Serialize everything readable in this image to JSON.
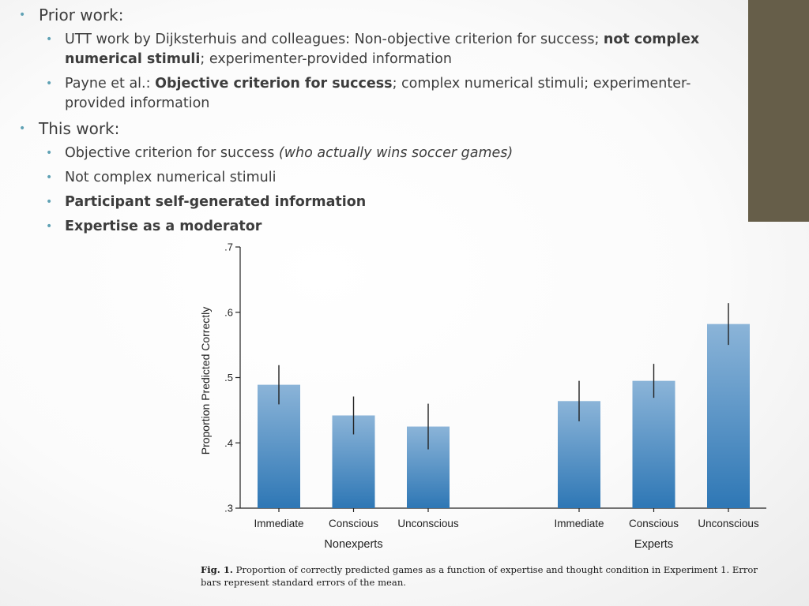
{
  "theme": {
    "accent": "#665e49",
    "text": "#3d3d3d",
    "bullet": "#5fa1b4",
    "bar_top": "#8bb4d8",
    "bar_bottom": "#2e77b5"
  },
  "slide": {
    "items": [
      {
        "level": 1,
        "runs": [
          {
            "t": "Prior work:"
          }
        ]
      },
      {
        "level": 2,
        "runs": [
          {
            "t": "UTT work by Dijksterhuis and colleagues: Non-objective criterion for success; "
          },
          {
            "t": "not complex numerical stimuli",
            "b": true
          },
          {
            "t": "; experimenter-provided information"
          }
        ]
      },
      {
        "level": 2,
        "runs": [
          {
            "t": "Payne et al.: "
          },
          {
            "t": "Objective criterion for success",
            "b": true
          },
          {
            "t": "; complex numerical stimuli; experimenter-provided information"
          }
        ]
      },
      {
        "level": 1,
        "runs": [
          {
            "t": "This work:"
          }
        ]
      },
      {
        "level": 2,
        "runs": [
          {
            "t": "Objective criterion for success "
          },
          {
            "t": "(who actually wins soccer games)",
            "i": true
          }
        ]
      },
      {
        "level": 2,
        "runs": [
          {
            "t": "Not complex numerical stimuli"
          }
        ]
      },
      {
        "level": 2,
        "runs": [
          {
            "t": "Participant self-generated information",
            "b": true
          }
        ]
      },
      {
        "level": 2,
        "runs": [
          {
            "t": "Expertise as a moderator",
            "b": true
          }
        ]
      }
    ],
    "bullet_char": "•"
  },
  "chart_data": {
    "type": "bar",
    "title": "",
    "ylabel": "Proportion Predicted Correctly",
    "ylim": [
      0.3,
      0.7
    ],
    "yticks": [
      0.3,
      0.4,
      0.5,
      0.6,
      0.7
    ],
    "ytick_labels": [
      ".3",
      ".4",
      ".5",
      ".6",
      ".7"
    ],
    "groups": [
      {
        "name": "Nonexperts",
        "bars": [
          {
            "label": "Immediate",
            "value": 0.489,
            "err": 0.03
          },
          {
            "label": "Conscious",
            "value": 0.442,
            "err": 0.029
          },
          {
            "label": "Unconscious",
            "value": 0.425,
            "err": 0.035
          }
        ]
      },
      {
        "name": "Experts",
        "bars": [
          {
            "label": "Immediate",
            "value": 0.464,
            "err": 0.031
          },
          {
            "label": "Conscious",
            "value": 0.495,
            "err": 0.026
          },
          {
            "label": "Unconscious",
            "value": 0.582,
            "err": 0.032
          }
        ]
      }
    ],
    "grid": false,
    "legend": "none"
  },
  "caption": {
    "label": "Fig. 1.",
    "text": "Proportion of correctly predicted games as a function of expertise and thought condition in Experiment 1. Error bars represent standard errors of the mean."
  }
}
